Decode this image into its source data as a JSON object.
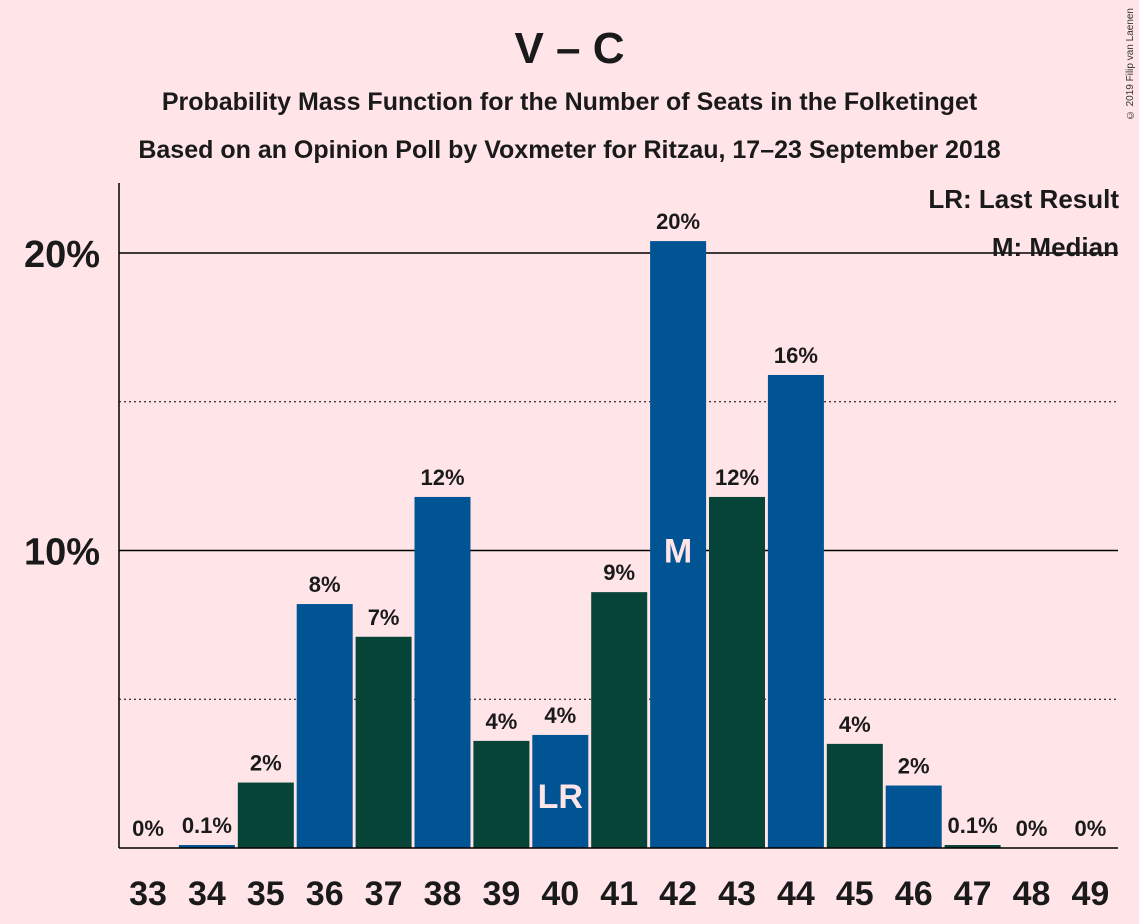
{
  "chart_data": {
    "type": "bar",
    "title": "V – C",
    "subtitle": "Probability Mass Function for the Number of Seats in the Folketinget",
    "subtitle2": "Based on an Opinion Poll by Voxmeter for Ritzau, 17–23 September 2018",
    "copyright": "© 2019 Filip van Laenen",
    "categories": [
      33,
      34,
      35,
      36,
      37,
      38,
      39,
      40,
      41,
      42,
      43,
      44,
      45,
      46,
      47,
      48,
      49
    ],
    "values": [
      0,
      0.1,
      2.2,
      8.2,
      7.1,
      11.8,
      3.6,
      3.8,
      8.6,
      20.4,
      11.8,
      15.9,
      3.5,
      2.1,
      0.1,
      0,
      0
    ],
    "labels": [
      "0%",
      "0.1%",
      "2%",
      "8%",
      "7%",
      "12%",
      "4%",
      "4%",
      "9%",
      "20%",
      "12%",
      "16%",
      "4%",
      "2%",
      "0.1%",
      "0%",
      "0%"
    ],
    "yticks": [
      10,
      20
    ],
    "ytick_labels": [
      "10%",
      "20%"
    ],
    "ylim": [
      0,
      22.3
    ],
    "last_result_seat": 40,
    "median_seat": 42,
    "lr_marker": "LR",
    "median_marker": "M",
    "colors": {
      "blue": "#005493",
      "green": "#054437"
    },
    "legend": {
      "lr": "LR: Last Result",
      "median": "M: Median"
    }
  }
}
